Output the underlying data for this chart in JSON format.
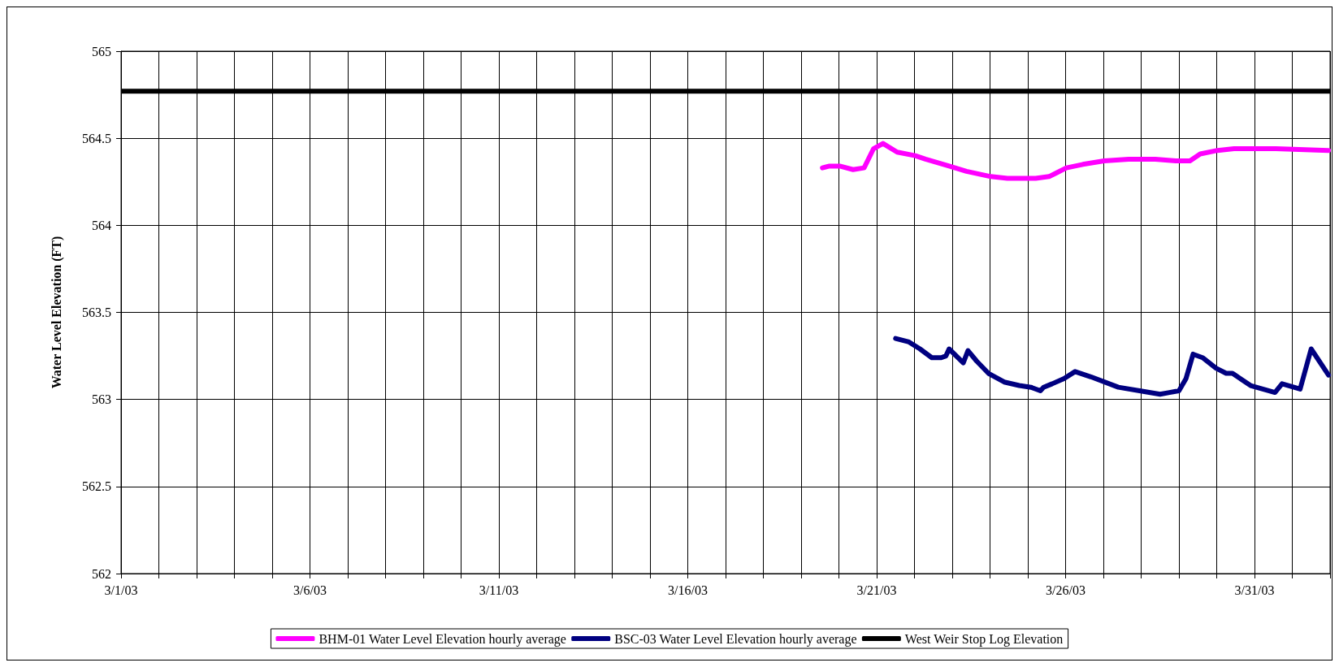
{
  "chart_data": {
    "type": "line",
    "ylabel": "Water Level Elevation (FT)",
    "xlim": [
      "--03-01",
      "--04-02"
    ],
    "xticks": [
      {
        "value": "--03-01",
        "label": "3/1/03"
      },
      {
        "value": "--03-02",
        "label": null
      },
      {
        "value": "--03-03",
        "label": null
      },
      {
        "value": "--03-04",
        "label": null
      },
      {
        "value": "--03-05",
        "label": null
      },
      {
        "value": "--03-06",
        "label": "3/6/03"
      },
      {
        "value": "--03-07",
        "label": null
      },
      {
        "value": "--03-08",
        "label": null
      },
      {
        "value": "--03-09",
        "label": null
      },
      {
        "value": "--03-10",
        "label": null
      },
      {
        "value": "--03-11",
        "label": "3/11/03"
      },
      {
        "value": "--03-12",
        "label": null
      },
      {
        "value": "--03-13",
        "label": null
      },
      {
        "value": "--03-14",
        "label": null
      },
      {
        "value": "--03-15",
        "label": null
      },
      {
        "value": "--03-16",
        "label": "3/16/03"
      },
      {
        "value": "--03-17",
        "label": null
      },
      {
        "value": "--03-18",
        "label": null
      },
      {
        "value": "--03-19",
        "label": null
      },
      {
        "value": "--03-20",
        "label": null
      },
      {
        "value": "--03-21",
        "label": "3/21/03"
      },
      {
        "value": "--03-22",
        "label": null
      },
      {
        "value": "--03-23",
        "label": null
      },
      {
        "value": "--03-24",
        "label": null
      },
      {
        "value": "--03-25",
        "label": null
      },
      {
        "value": "--03-26",
        "label": "3/26/03"
      },
      {
        "value": "--03-27",
        "label": null
      },
      {
        "value": "--03-28",
        "label": null
      },
      {
        "value": "--03-29",
        "label": null
      },
      {
        "value": "--03-30",
        "label": null
      },
      {
        "value": "--03-31",
        "label": "3/31/03"
      },
      {
        "value": "--04-01",
        "label": null
      },
      {
        "value": "--04-02",
        "label": null
      }
    ],
    "ylim": [
      562,
      565
    ],
    "yticks": [
      562,
      562.5,
      563,
      563.5,
      564,
      564.5,
      565
    ],
    "grid": true,
    "legend": "bottom",
    "marker": "none",
    "line_style": "solid",
    "ref_lines": [
      {
        "axis": "y",
        "value": 564.77,
        "label": "West Weir Stop Log Elevation",
        "color": "#000000"
      }
    ],
    "series": [
      {
        "name": "BHM-01 Water Level Elevation hourly average",
        "color": "#ff00ff",
        "x": [
          "--03-19T13:30",
          "--03-19T18:00",
          "--03-20T00:30",
          "--03-20T09:00",
          "--03-20T16:00",
          "--03-20T22:00",
          "--03-21T04:00",
          "--03-21T13:00",
          "--03-22T00:30",
          "--03-22T07:00",
          "--03-22T22:00",
          "--03-23T09:00",
          "--03-24T00:30",
          "--03-24T11:00",
          "--03-25T05:00",
          "--03-25T13:30",
          "--03-25T18:00",
          "--03-26T00:30",
          "--03-26T11:00",
          "--03-27T00:30",
          "--03-27T16:00",
          "--03-28T09:00",
          "--03-28T22:00",
          "--03-29T07:00",
          "--03-29T13:30",
          "--03-30T00:30",
          "--03-30T11:00",
          "--03-31T13:30",
          "--04-01T23:00"
        ],
        "values": [
          564.33,
          564.34,
          564.34,
          564.32,
          564.33,
          564.44,
          564.47,
          564.42,
          564.4,
          564.38,
          564.34,
          564.31,
          564.28,
          564.27,
          564.27,
          564.28,
          564.3,
          564.33,
          564.35,
          564.37,
          564.38,
          564.38,
          564.37,
          564.37,
          564.41,
          564.43,
          564.44,
          564.44,
          564.43
        ]
      },
      {
        "name": "BSC-03 Water Level Elevation hourly average",
        "color": "#000080",
        "x": [
          "--03-21T12:00",
          "--03-21T20:30",
          "--03-22T03:30",
          "--03-22T11:00",
          "--03-22T17:00",
          "--03-22T20:00",
          "--03-22T22:00",
          "--03-23T07:00",
          "--03-23T10:00",
          "--03-23T15:30",
          "--03-23T23:00",
          "--03-24T09:00",
          "--03-24T18:30",
          "--03-25T02:00",
          "--03-25T08:00",
          "--03-25T10:00",
          "--03-25T15:30",
          "--03-25T23:00",
          "--03-26T06:00",
          "--03-26T16:00",
          "--03-27T09:30",
          "--03-27T23:00",
          "--03-28T12:00",
          "--03-28T18:00",
          "--03-29T00:00",
          "--03-29T04:30",
          "--03-29T09:00",
          "--03-29T15:00",
          "--03-29T23:30",
          "--03-30T06:00",
          "--03-30T10:00",
          "--03-30T21:30",
          "--03-31T13:00",
          "--03-31T17:30",
          "--04-01T05:00",
          "--04-01T12:00",
          "--04-01T23:00"
        ],
        "values": [
          563.35,
          563.33,
          563.29,
          563.24,
          563.24,
          563.25,
          563.29,
          563.21,
          563.28,
          563.22,
          563.15,
          563.1,
          563.08,
          563.07,
          563.05,
          563.07,
          563.09,
          563.12,
          563.16,
          563.13,
          563.07,
          563.05,
          563.03,
          563.04,
          563.05,
          563.12,
          563.26,
          563.24,
          563.18,
          563.15,
          563.15,
          563.08,
          563.04,
          563.09,
          563.06,
          563.29,
          563.14
        ]
      }
    ]
  }
}
